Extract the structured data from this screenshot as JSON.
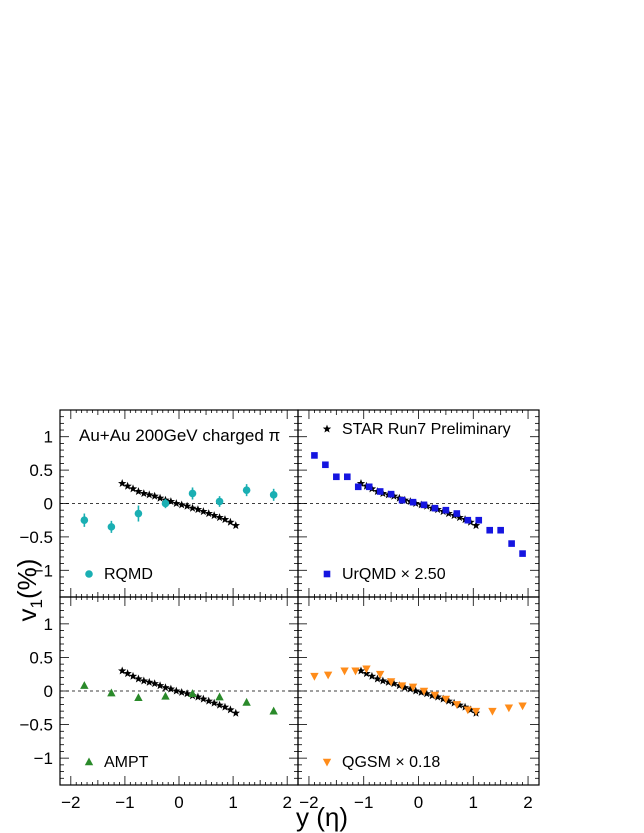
{
  "figure": {
    "xlabel": "y (η)",
    "ylabel": "v",
    "ylabel_sub": "1",
    "ylabel_unit": "(%)",
    "title": "Au+Au 200GeV charged π"
  },
  "chart_data": [
    {
      "type": "scatter",
      "panel": "top-left",
      "xlim": [
        -2.2,
        2.2
      ],
      "ylim": [
        -1.4,
        1.4
      ],
      "xlabel": "y (η)",
      "ylabel": "v1(%)",
      "title": "Au+Au 200GeV charged π",
      "legend_position": "bottom-left",
      "series": [
        {
          "name": "STAR",
          "marker": "star",
          "color": "#000000",
          "x": [
            -1.05,
            -0.95,
            -0.85,
            -0.75,
            -0.65,
            -0.55,
            -0.45,
            -0.35,
            -0.25,
            -0.15,
            -0.05,
            0.05,
            0.15,
            0.25,
            0.35,
            0.45,
            0.55,
            0.65,
            0.75,
            0.85,
            0.95,
            1.05
          ],
          "y": [
            0.3,
            0.26,
            0.22,
            0.18,
            0.15,
            0.13,
            0.11,
            0.08,
            0.05,
            0.03,
            0.0,
            -0.02,
            -0.04,
            -0.07,
            -0.09,
            -0.12,
            -0.15,
            -0.18,
            -0.21,
            -0.24,
            -0.28,
            -0.33
          ]
        },
        {
          "name": "RQMD",
          "marker": "circle",
          "color": "#1aafb3",
          "x": [
            -1.75,
            -1.25,
            -0.75,
            -0.25,
            0.25,
            0.75,
            1.25,
            1.75
          ],
          "y": [
            -0.25,
            -0.35,
            -0.15,
            0.0,
            0.15,
            0.03,
            0.2,
            0.13
          ],
          "err": [
            0.1,
            0.09,
            0.12,
            0.07,
            0.09,
            0.08,
            0.09,
            0.09
          ]
        }
      ],
      "legend": [
        {
          "label": "RQMD",
          "marker": "circle",
          "color": "#1aafb3"
        }
      ]
    },
    {
      "type": "scatter",
      "panel": "top-right",
      "xlim": [
        -2.2,
        2.2
      ],
      "ylim": [
        -1.4,
        1.4
      ],
      "legend_position": "bottom-left",
      "series": [
        {
          "name": "STAR Run7 Preliminary",
          "marker": "star",
          "color": "#000000",
          "x": [
            -1.05,
            -0.95,
            -0.85,
            -0.75,
            -0.65,
            -0.55,
            -0.45,
            -0.35,
            -0.25,
            -0.15,
            -0.05,
            0.05,
            0.15,
            0.25,
            0.35,
            0.45,
            0.55,
            0.65,
            0.75,
            0.85,
            0.95,
            1.05
          ],
          "y": [
            0.3,
            0.26,
            0.22,
            0.18,
            0.15,
            0.13,
            0.11,
            0.08,
            0.05,
            0.03,
            0.0,
            -0.02,
            -0.04,
            -0.07,
            -0.09,
            -0.12,
            -0.15,
            -0.18,
            -0.21,
            -0.24,
            -0.28,
            -0.33
          ]
        },
        {
          "name": "UrQMD",
          "marker": "square",
          "color": "#1515e0",
          "x": [
            -1.9,
            -1.7,
            -1.5,
            -1.3,
            -1.1,
            -0.9,
            -0.7,
            -0.5,
            -0.3,
            -0.1,
            0.1,
            0.3,
            0.5,
            0.7,
            0.9,
            1.1,
            1.3,
            1.5,
            1.7,
            1.9
          ],
          "y": [
            0.72,
            0.58,
            0.4,
            0.4,
            0.25,
            0.25,
            0.18,
            0.14,
            0.05,
            0.02,
            -0.02,
            -0.07,
            -0.1,
            -0.15,
            -0.25,
            -0.25,
            -0.4,
            -0.4,
            -0.6,
            -0.75
          ]
        }
      ],
      "legend": [
        {
          "label": "STAR Run7 Preliminary",
          "marker": "star",
          "color": "#000000"
        },
        {
          "label": "UrQMD × 2.50",
          "marker": "square",
          "color": "#1515e0"
        }
      ]
    },
    {
      "type": "scatter",
      "panel": "bottom-left",
      "xlim": [
        -2.2,
        2.2
      ],
      "ylim": [
        -1.4,
        1.4
      ],
      "legend_position": "bottom-left",
      "series": [
        {
          "name": "STAR",
          "marker": "star",
          "color": "#000000",
          "x": [
            -1.05,
            -0.95,
            -0.85,
            -0.75,
            -0.65,
            -0.55,
            -0.45,
            -0.35,
            -0.25,
            -0.15,
            -0.05,
            0.05,
            0.15,
            0.25,
            0.35,
            0.45,
            0.55,
            0.65,
            0.75,
            0.85,
            0.95,
            1.05
          ],
          "y": [
            0.3,
            0.26,
            0.22,
            0.18,
            0.15,
            0.13,
            0.11,
            0.08,
            0.05,
            0.03,
            0.0,
            -0.02,
            -0.04,
            -0.07,
            -0.09,
            -0.12,
            -0.15,
            -0.18,
            -0.21,
            -0.24,
            -0.28,
            -0.33
          ]
        },
        {
          "name": "AMPT",
          "marker": "triangle-up",
          "color": "#2a8a2a",
          "x": [
            -1.75,
            -1.25,
            -0.75,
            -0.25,
            0.25,
            0.75,
            1.25,
            1.75
          ],
          "y": [
            0.08,
            -0.03,
            -0.1,
            -0.08,
            -0.04,
            -0.09,
            -0.17,
            -0.3
          ]
        }
      ],
      "legend": [
        {
          "label": "AMPT",
          "marker": "triangle-up",
          "color": "#2a8a2a"
        }
      ]
    },
    {
      "type": "scatter",
      "panel": "bottom-right",
      "xlim": [
        -2.2,
        2.2
      ],
      "ylim": [
        -1.4,
        1.4
      ],
      "legend_position": "bottom-left",
      "series": [
        {
          "name": "STAR",
          "marker": "star",
          "color": "#000000",
          "x": [
            -1.05,
            -0.95,
            -0.85,
            -0.75,
            -0.65,
            -0.55,
            -0.45,
            -0.35,
            -0.25,
            -0.15,
            -0.05,
            0.05,
            0.15,
            0.25,
            0.35,
            0.45,
            0.55,
            0.65,
            0.75,
            0.85,
            0.95,
            1.05
          ],
          "y": [
            0.3,
            0.26,
            0.22,
            0.18,
            0.15,
            0.13,
            0.11,
            0.08,
            0.05,
            0.03,
            0.0,
            -0.02,
            -0.04,
            -0.07,
            -0.09,
            -0.12,
            -0.15,
            -0.18,
            -0.21,
            -0.24,
            -0.28,
            -0.33
          ]
        },
        {
          "name": "QGSM",
          "marker": "triangle-down",
          "color": "#ff8c1a",
          "x": [
            -1.9,
            -1.65,
            -1.35,
            -1.15,
            -0.95,
            -0.7,
            -0.5,
            -0.3,
            -0.1,
            0.1,
            0.3,
            0.5,
            0.7,
            0.9,
            1.05,
            1.35,
            1.65,
            1.9
          ],
          "y": [
            0.22,
            0.24,
            0.3,
            0.3,
            0.33,
            0.25,
            0.14,
            0.08,
            0.06,
            0.0,
            -0.06,
            -0.12,
            -0.2,
            -0.28,
            -0.3,
            -0.3,
            -0.25,
            -0.22
          ]
        }
      ],
      "legend": [
        {
          "label": "QGSM × 0.18",
          "marker": "triangle-down",
          "color": "#ff8c1a"
        }
      ]
    }
  ]
}
